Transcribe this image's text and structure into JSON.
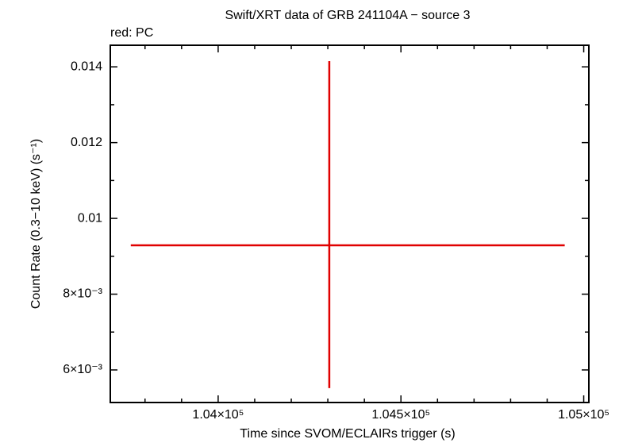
{
  "chart_data": {
    "type": "errorbar",
    "title": "Swift/XRT data of GRB 241104A − source 3",
    "legend_text": "red: PC",
    "xlabel": "Time since SVOM/ECLAIRs trigger (s)",
    "ylabel": "Count Rate (0.3−10 keV) (s⁻¹)",
    "series": [
      {
        "color": "#e00000",
        "x": [
          104304
        ],
        "xerr_minus": [
          543
        ],
        "xerr_plus": [
          644
        ],
        "values": [
          0.00929
        ],
        "yerr_minus": [
          0.00377
        ],
        "yerr_plus": [
          0.00486
        ]
      }
    ],
    "xlim": [
      103705,
      105014
    ],
    "ylim": [
      0.00514,
      0.01457
    ],
    "xticks": [
      {
        "value": 104000,
        "label": "1.04×10⁵"
      },
      {
        "value": 104500,
        "label": "1.045×10⁵"
      },
      {
        "value": 105000,
        "label": "1.05×10⁵"
      }
    ],
    "xminorticks": [
      103800,
      103900,
      104100,
      104200,
      104300,
      104400,
      104600,
      104700,
      104800,
      104900
    ],
    "yticks": [
      {
        "value": 0.006,
        "label": "6×10⁻³"
      },
      {
        "value": 0.008,
        "label": "8×10⁻³"
      },
      0.01,
      0.012,
      0.014
    ],
    "yminorticks": [
      0.007,
      0.009,
      0.011,
      0.013
    ]
  }
}
